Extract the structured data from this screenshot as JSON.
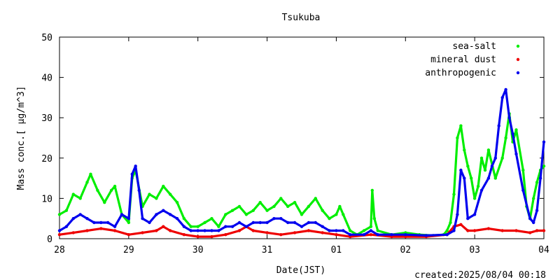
{
  "chart_data": {
    "type": "scatter",
    "title": "Tsukuba",
    "xlabel": "Date(JST)",
    "ylabel": "Mass conc.[ μg/m^3]",
    "footer": "created:2025/08/04 00:18",
    "xlim": [
      0,
      7
    ],
    "ylim": [
      0,
      50
    ],
    "x_tick_labels": [
      "28",
      "29",
      "30",
      "31",
      "01",
      "02",
      "03",
      "04"
    ],
    "y_ticks": [
      0,
      10,
      20,
      30,
      40,
      50
    ],
    "legend_position": "top-right",
    "grid": false,
    "series": [
      {
        "name": "sea-salt",
        "color": "#00ee00",
        "points": [
          [
            0.0,
            6
          ],
          [
            0.1,
            7
          ],
          [
            0.2,
            11
          ],
          [
            0.3,
            10
          ],
          [
            0.4,
            14
          ],
          [
            0.45,
            16
          ],
          [
            0.55,
            12
          ],
          [
            0.65,
            9
          ],
          [
            0.75,
            12
          ],
          [
            0.8,
            13
          ],
          [
            0.9,
            6
          ],
          [
            1.0,
            4
          ],
          [
            1.05,
            15
          ],
          [
            1.1,
            17
          ],
          [
            1.2,
            8
          ],
          [
            1.3,
            11
          ],
          [
            1.4,
            10
          ],
          [
            1.5,
            13
          ],
          [
            1.6,
            11
          ],
          [
            1.7,
            9
          ],
          [
            1.8,
            5
          ],
          [
            1.9,
            3
          ],
          [
            2.0,
            3
          ],
          [
            2.1,
            4
          ],
          [
            2.2,
            5
          ],
          [
            2.3,
            3
          ],
          [
            2.4,
            6
          ],
          [
            2.5,
            7
          ],
          [
            2.6,
            8
          ],
          [
            2.7,
            6
          ],
          [
            2.8,
            7
          ],
          [
            2.9,
            9
          ],
          [
            3.0,
            7
          ],
          [
            3.1,
            8
          ],
          [
            3.2,
            10
          ],
          [
            3.3,
            8
          ],
          [
            3.4,
            9
          ],
          [
            3.5,
            6
          ],
          [
            3.6,
            8
          ],
          [
            3.7,
            10
          ],
          [
            3.8,
            7
          ],
          [
            3.9,
            5
          ],
          [
            4.0,
            6
          ],
          [
            4.05,
            8
          ],
          [
            4.1,
            6
          ],
          [
            4.2,
            2
          ],
          [
            4.3,
            1
          ],
          [
            4.4,
            2
          ],
          [
            4.5,
            3
          ],
          [
            4.52,
            12
          ],
          [
            4.55,
            5
          ],
          [
            4.6,
            2
          ],
          [
            4.8,
            1
          ],
          [
            5.0,
            1.5
          ],
          [
            5.2,
            1
          ],
          [
            5.4,
            0.8
          ],
          [
            5.55,
            1
          ],
          [
            5.6,
            2
          ],
          [
            5.65,
            4
          ],
          [
            5.7,
            11
          ],
          [
            5.75,
            25
          ],
          [
            5.8,
            28
          ],
          [
            5.85,
            22
          ],
          [
            5.9,
            18
          ],
          [
            5.95,
            15
          ],
          [
            6.0,
            10
          ],
          [
            6.05,
            13
          ],
          [
            6.1,
            20
          ],
          [
            6.15,
            17
          ],
          [
            6.2,
            22
          ],
          [
            6.3,
            15
          ],
          [
            6.4,
            20
          ],
          [
            6.45,
            25
          ],
          [
            6.5,
            31
          ],
          [
            6.55,
            24
          ],
          [
            6.6,
            27
          ],
          [
            6.7,
            17
          ],
          [
            6.75,
            8
          ],
          [
            6.8,
            5
          ],
          [
            6.85,
            10
          ],
          [
            6.9,
            14
          ],
          [
            6.95,
            17
          ],
          [
            7.0,
            18
          ]
        ]
      },
      {
        "name": "mineral dust",
        "color": "#ee0000",
        "points": [
          [
            0.0,
            1
          ],
          [
            0.2,
            1.5
          ],
          [
            0.4,
            2
          ],
          [
            0.6,
            2.5
          ],
          [
            0.8,
            2
          ],
          [
            1.0,
            1
          ],
          [
            1.2,
            1.5
          ],
          [
            1.4,
            2
          ],
          [
            1.5,
            3
          ],
          [
            1.6,
            2
          ],
          [
            1.8,
            1
          ],
          [
            2.0,
            0.5
          ],
          [
            2.2,
            0.5
          ],
          [
            2.4,
            1
          ],
          [
            2.6,
            2
          ],
          [
            2.7,
            3
          ],
          [
            2.8,
            2
          ],
          [
            3.0,
            1.5
          ],
          [
            3.2,
            1
          ],
          [
            3.4,
            1.5
          ],
          [
            3.6,
            2
          ],
          [
            3.8,
            1.5
          ],
          [
            4.0,
            1
          ],
          [
            4.2,
            0.5
          ],
          [
            4.5,
            1
          ],
          [
            4.8,
            0.5
          ],
          [
            5.0,
            0.5
          ],
          [
            5.3,
            0.5
          ],
          [
            5.6,
            1
          ],
          [
            5.7,
            3
          ],
          [
            5.8,
            3.5
          ],
          [
            5.9,
            2
          ],
          [
            6.0,
            2
          ],
          [
            6.2,
            2.5
          ],
          [
            6.4,
            2
          ],
          [
            6.6,
            2
          ],
          [
            6.8,
            1.5
          ],
          [
            6.9,
            2
          ],
          [
            7.0,
            2
          ]
        ]
      },
      {
        "name": "anthropogenic",
        "color": "#0000ee",
        "points": [
          [
            0.0,
            2
          ],
          [
            0.1,
            3
          ],
          [
            0.2,
            5
          ],
          [
            0.3,
            6
          ],
          [
            0.4,
            5
          ],
          [
            0.5,
            4
          ],
          [
            0.6,
            4
          ],
          [
            0.7,
            4
          ],
          [
            0.8,
            3
          ],
          [
            0.9,
            6
          ],
          [
            1.0,
            5
          ],
          [
            1.05,
            16
          ],
          [
            1.1,
            18
          ],
          [
            1.15,
            12
          ],
          [
            1.2,
            5
          ],
          [
            1.3,
            4
          ],
          [
            1.4,
            6
          ],
          [
            1.5,
            7
          ],
          [
            1.6,
            6
          ],
          [
            1.7,
            5
          ],
          [
            1.8,
            3
          ],
          [
            1.9,
            2
          ],
          [
            2.0,
            2
          ],
          [
            2.1,
            2
          ],
          [
            2.2,
            2
          ],
          [
            2.3,
            2
          ],
          [
            2.4,
            3
          ],
          [
            2.5,
            3
          ],
          [
            2.6,
            4
          ],
          [
            2.7,
            3
          ],
          [
            2.8,
            4
          ],
          [
            2.9,
            4
          ],
          [
            3.0,
            4
          ],
          [
            3.1,
            5
          ],
          [
            3.2,
            5
          ],
          [
            3.3,
            4
          ],
          [
            3.4,
            4
          ],
          [
            3.5,
            3
          ],
          [
            3.6,
            4
          ],
          [
            3.7,
            4
          ],
          [
            3.8,
            3
          ],
          [
            3.9,
            2
          ],
          [
            4.0,
            2
          ],
          [
            4.1,
            2
          ],
          [
            4.2,
            1
          ],
          [
            4.4,
            1
          ],
          [
            4.5,
            2
          ],
          [
            4.6,
            1
          ],
          [
            4.8,
            1
          ],
          [
            5.0,
            1
          ],
          [
            5.3,
            0.8
          ],
          [
            5.6,
            1
          ],
          [
            5.7,
            2
          ],
          [
            5.75,
            6
          ],
          [
            5.8,
            17
          ],
          [
            5.85,
            15
          ],
          [
            5.9,
            5
          ],
          [
            6.0,
            6
          ],
          [
            6.1,
            12
          ],
          [
            6.2,
            15
          ],
          [
            6.25,
            18
          ],
          [
            6.3,
            20
          ],
          [
            6.35,
            28
          ],
          [
            6.4,
            35
          ],
          [
            6.45,
            37
          ],
          [
            6.5,
            30
          ],
          [
            6.55,
            26
          ],
          [
            6.6,
            21
          ],
          [
            6.7,
            12
          ],
          [
            6.8,
            5
          ],
          [
            6.85,
            4
          ],
          [
            6.9,
            7
          ],
          [
            6.95,
            15
          ],
          [
            7.0,
            24
          ]
        ]
      }
    ]
  }
}
